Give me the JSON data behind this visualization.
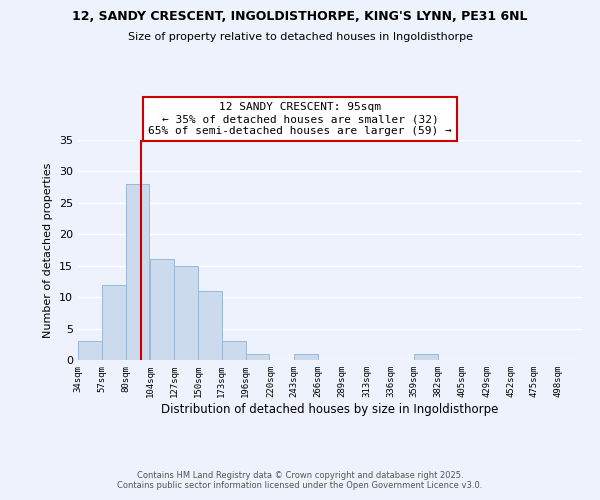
{
  "title1": "12, SANDY CRESCENT, INGOLDISTHORPE, KING'S LYNN, PE31 6NL",
  "title2": "Size of property relative to detached houses in Ingoldisthorpe",
  "xlabel": "Distribution of detached houses by size in Ingoldisthorpe",
  "ylabel": "Number of detached properties",
  "bin_labels": [
    "34sqm",
    "57sqm",
    "80sqm",
    "104sqm",
    "127sqm",
    "150sqm",
    "173sqm",
    "196sqm",
    "220sqm",
    "243sqm",
    "266sqm",
    "289sqm",
    "313sqm",
    "336sqm",
    "359sqm",
    "382sqm",
    "405sqm",
    "429sqm",
    "452sqm",
    "475sqm",
    "498sqm"
  ],
  "bin_edges": [
    34,
    57,
    80,
    104,
    127,
    150,
    173,
    196,
    220,
    243,
    266,
    289,
    313,
    336,
    359,
    382,
    405,
    429,
    452,
    475,
    498
  ],
  "bar_heights": [
    3,
    12,
    28,
    16,
    15,
    11,
    3,
    1,
    0,
    1,
    0,
    0,
    0,
    0,
    1,
    0,
    0,
    0,
    0,
    0,
    0
  ],
  "bar_color": "#ccdaee",
  "bar_edgecolor": "#9ab8d8",
  "ylim": [
    0,
    35
  ],
  "yticks": [
    0,
    5,
    10,
    15,
    20,
    25,
    30,
    35
  ],
  "property_size": 95,
  "red_line_color": "#cc0000",
  "annotation_line1": "12 SANDY CRESCENT: 95sqm",
  "annotation_line2": "← 35% of detached houses are smaller (32)",
  "annotation_line3": "65% of semi-detached houses are larger (59) →",
  "annotation_box_edgecolor": "#cc0000",
  "footer_text": "Contains HM Land Registry data © Crown copyright and database right 2025.\nContains public sector information licensed under the Open Government Licence v3.0.",
  "background_color": "#eef2fc",
  "grid_color": "#ffffff"
}
